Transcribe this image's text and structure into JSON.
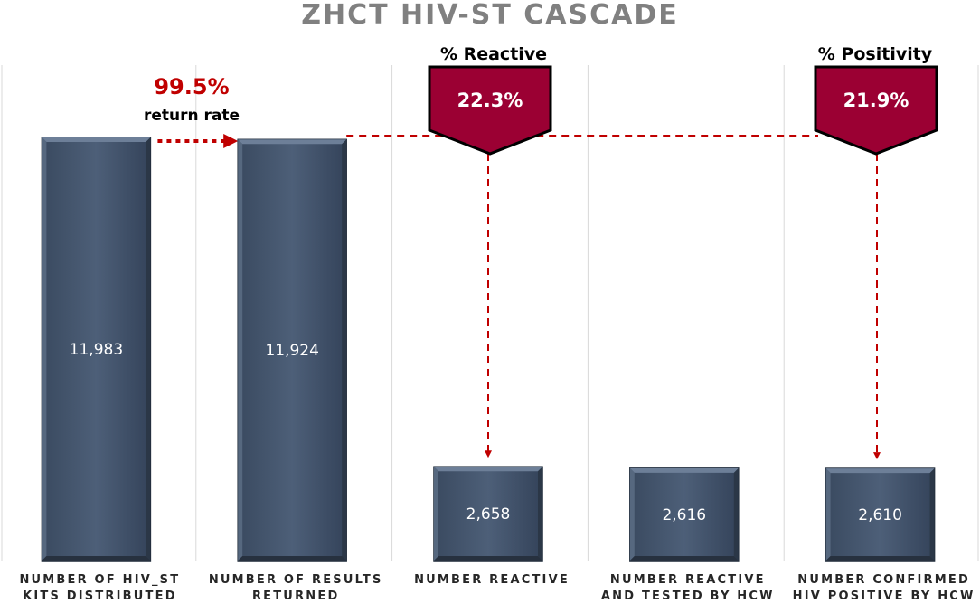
{
  "chart_data": {
    "type": "bar",
    "title": "ZHCT HIV-ST CASCADE",
    "categories": [
      [
        "NUMBER OF HIV_ST",
        "KITS DISTRIBUTED"
      ],
      [
        "NUMBER OF RESULTS",
        "RETURNED"
      ],
      [
        "NUMBER REACTIVE"
      ],
      [
        "NUMBER REACTIVE",
        "AND TESTED BY HCW"
      ],
      [
        "NUMBER CONFIRMED",
        "HIV POSITIVE BY HCW"
      ]
    ],
    "values": [
      11983,
      11924,
      2658,
      2616,
      2610
    ],
    "value_labels": [
      "11,983",
      "11,924",
      "2,658",
      "2,616",
      "2,610"
    ],
    "ylim": [
      0,
      12500
    ],
    "grid": false,
    "bar_color": "#44546a",
    "annotations": {
      "return_rate": {
        "value": "99.5%",
        "label": "return rate"
      },
      "reactive": {
        "heading": "% Reactive",
        "value": "22.3%"
      },
      "positivity": {
        "heading": "% Positivity",
        "value": "21.9%"
      }
    },
    "annotation_color": "#c00000",
    "callout_color": "#9b0033"
  }
}
